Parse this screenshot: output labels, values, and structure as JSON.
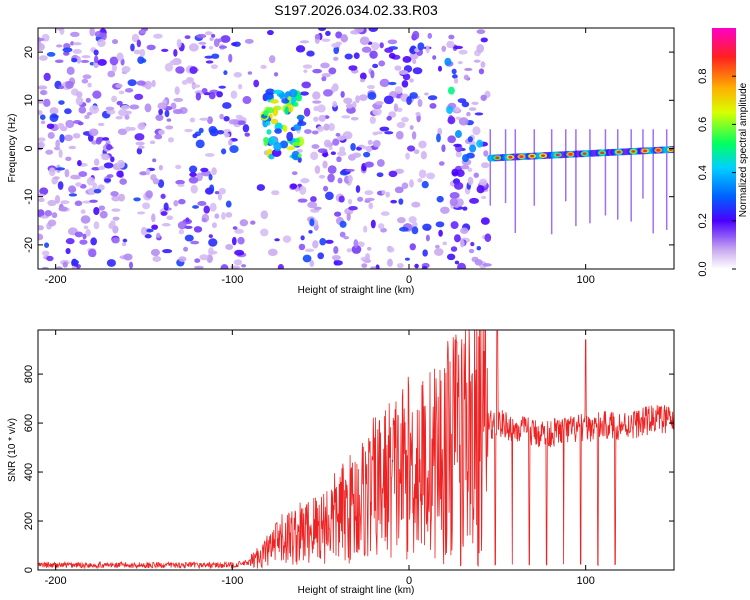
{
  "title": "S197.2026.034.02.33.R03",
  "chart_data": [
    {
      "type": "heatmap",
      "title": "S197.2026.034.02.33.R03",
      "xlabel": "Height of straight line (km)",
      "ylabel": "Frequency (Hz)",
      "xlim": [
        -210,
        150
      ],
      "ylim": [
        -25,
        25
      ],
      "xticks": [
        -200,
        -100,
        0,
        100
      ],
      "yticks": [
        -20,
        -10,
        0,
        10,
        20
      ],
      "colorbar": {
        "label": "Normalized spectral amplitude",
        "range": [
          0,
          1
        ],
        "ticks": [
          0.0,
          0.2,
          0.4,
          0.6,
          0.8
        ],
        "tick_labels": [
          "0.0",
          "0.2",
          "0.4",
          "0.6",
          "0.8"
        ]
      },
      "regions": [
        {
          "x_range": [
            -210,
            -90
          ],
          "description": "scattered low-amplitude noise, all frequencies"
        },
        {
          "x_range": [
            -90,
            -55
          ],
          "description": "noise cluster near 0-10 Hz, amplitude ~0.5-0.8"
        },
        {
          "x_range": [
            -55,
            15
          ],
          "description": "scattered noise"
        },
        {
          "x_range": [
            20,
            45
          ],
          "description": "transition, blobs near 15-20 Hz and 0 Hz"
        },
        {
          "x_range": [
            45,
            150
          ],
          "description": "sustained ridge near -2 to 0 Hz, amplitude up to ~1.0"
        }
      ]
    },
    {
      "type": "line",
      "xlabel": "Height of straight line (km)",
      "ylabel": "SNR (10 * v/v)",
      "xlim": [
        -210,
        150
      ],
      "ylim": [
        0,
        980
      ],
      "xticks": [
        -200,
        -100,
        0,
        100
      ],
      "yticks": [
        0,
        200,
        400,
        600,
        800
      ],
      "series": [
        {
          "name": "SNR",
          "color": "#ee2222",
          "x": [
            -210,
            -150,
            -100,
            -90,
            -80,
            -70,
            -60,
            -50,
            -40,
            -30,
            -20,
            -10,
            0,
            10,
            20,
            30,
            40,
            50,
            60,
            70,
            80,
            90,
            100,
            110,
            120,
            130,
            140,
            150
          ],
          "y": [
            20,
            20,
            20,
            30,
            80,
            130,
            150,
            180,
            220,
            270,
            330,
            380,
            420,
            430,
            480,
            560,
            580,
            600,
            580,
            560,
            560,
            570,
            580,
            590,
            590,
            600,
            620,
            610
          ],
          "peaks": [
            {
              "x": 27,
              "y": 930
            },
            {
              "x": 50,
              "y": 975
            },
            {
              "x": 100,
              "y": 940
            }
          ]
        }
      ]
    }
  ]
}
